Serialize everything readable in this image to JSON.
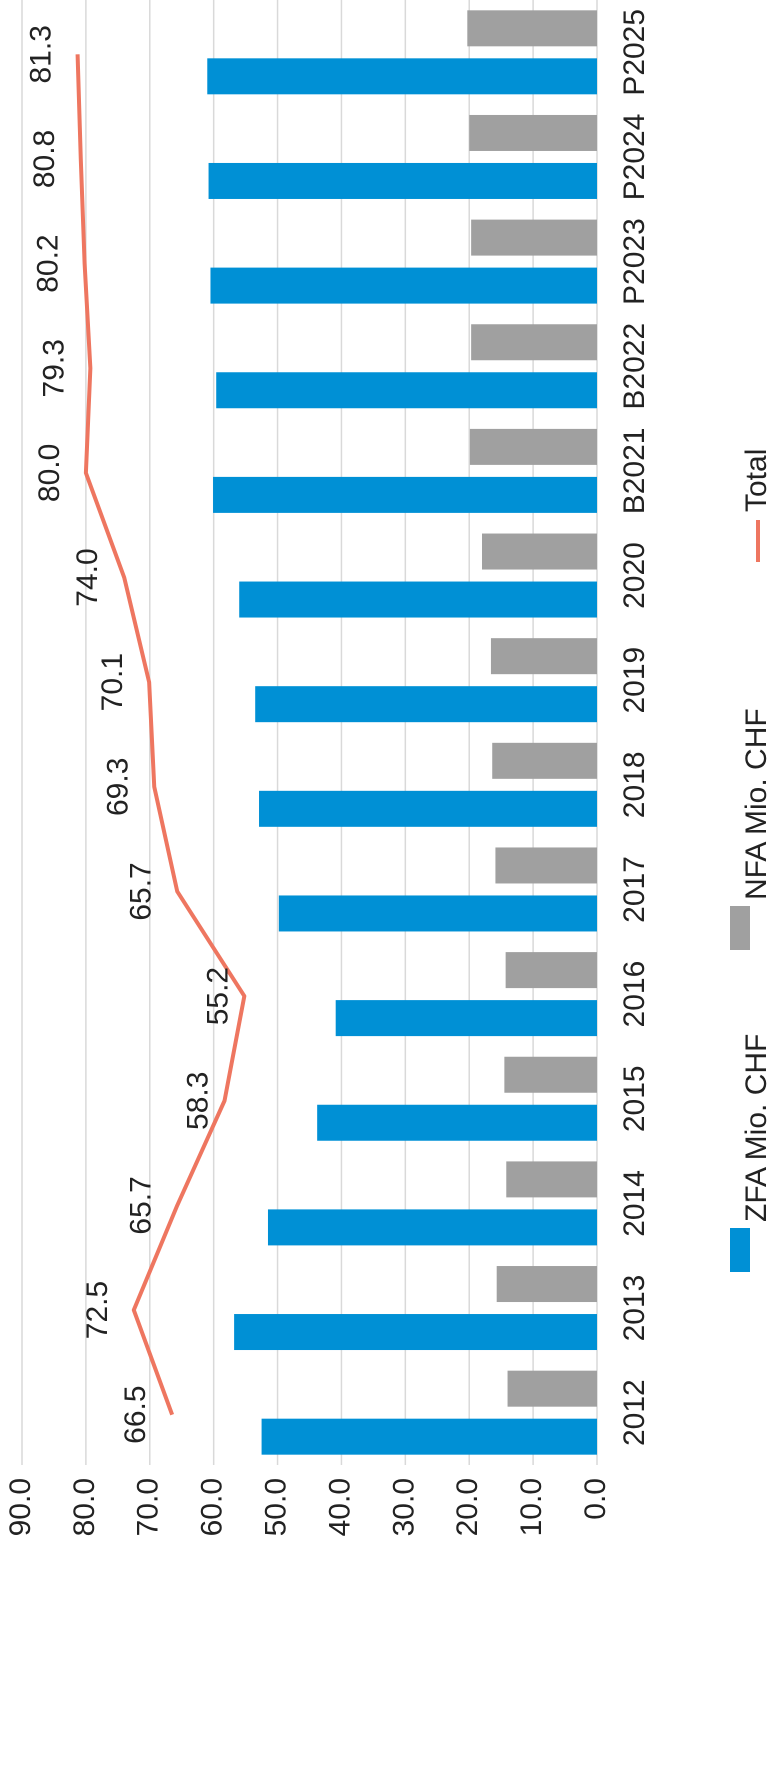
{
  "chart_data": {
    "type": "bar",
    "orientation": "rotated-90-ccw",
    "categories": [
      "2012",
      "2013",
      "2014",
      "2015",
      "2016",
      "2017",
      "2018",
      "2019",
      "2020",
      "B2021",
      "B2022",
      "P2023",
      "P2024",
      "P2025"
    ],
    "series": [
      {
        "name": "ZFA Mio. CHF",
        "type": "bar",
        "color": "#0090d5",
        "values": [
          52.5,
          56.8,
          51.5,
          43.8,
          40.9,
          49.8,
          52.9,
          53.5,
          56.0,
          60.1,
          59.6,
          60.5,
          60.8,
          61.0
        ]
      },
      {
        "name": "NFA Mio. CHF",
        "type": "bar",
        "color": "#a0a0a0",
        "values": [
          14.0,
          15.7,
          14.2,
          14.5,
          14.3,
          15.9,
          16.4,
          16.6,
          18.0,
          19.9,
          19.7,
          19.7,
          20.0,
          20.3
        ]
      },
      {
        "name": "Total",
        "type": "line",
        "color": "#ee7660",
        "values": [
          66.5,
          72.5,
          65.7,
          58.3,
          55.2,
          65.7,
          69.3,
          70.1,
          74.0,
          80.0,
          79.3,
          80.2,
          80.8,
          81.3
        ],
        "data_labels": [
          "66.5",
          "72.5",
          "65.7",
          "58.3",
          "55.2",
          "65.7",
          "69.3",
          "70.1",
          "74.0",
          "80.0",
          "79.3",
          "80.2",
          "80.8",
          "81.3"
        ]
      }
    ],
    "ylim": [
      0,
      90
    ],
    "yticks": [
      "0.0",
      "10.0",
      "20.0",
      "30.0",
      "40.0",
      "50.0",
      "60.0",
      "70.0",
      "80.0",
      "90.0"
    ],
    "grid": true,
    "legend": "bottom",
    "title": "",
    "xlabel": "",
    "ylabel": ""
  }
}
